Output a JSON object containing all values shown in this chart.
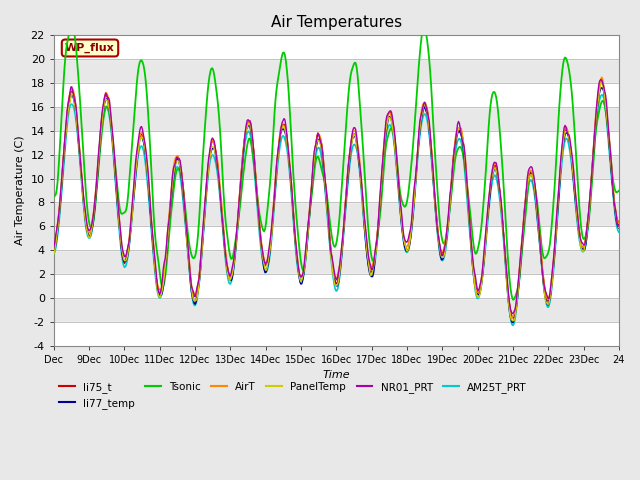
{
  "title": "Air Temperatures",
  "xlabel": "Time",
  "ylabel": "Air Temperature (C)",
  "ylim": [
    -4,
    22
  ],
  "yticks": [
    -4,
    -2,
    0,
    2,
    4,
    6,
    8,
    10,
    12,
    14,
    16,
    18,
    20,
    22
  ],
  "xtick_labels": [
    "Dec",
    "9Dec",
    "10Dec",
    "11Dec",
    "12Dec",
    "13Dec",
    "14Dec",
    "15Dec",
    "16Dec",
    "17Dec",
    "18Dec",
    "19Dec",
    "20Dec",
    "21Dec",
    "22Dec",
    "23Dec",
    "24"
  ],
  "series_colors": {
    "li75_t": "#cc0000",
    "li77_temp": "#000099",
    "Tsonic": "#00cc00",
    "AirT": "#ff8800",
    "PanelTemp": "#cccc00",
    "NR01_PRT": "#aa00aa",
    "AM25T_PRT": "#00cccc"
  },
  "legend_label": "WP_flux",
  "legend_bg": "#ffffcc",
  "legend_border": "#aa0000",
  "plot_bg": "#e8e8e8",
  "stripe_color": "#ffffff",
  "num_points": 600,
  "seed": 42
}
